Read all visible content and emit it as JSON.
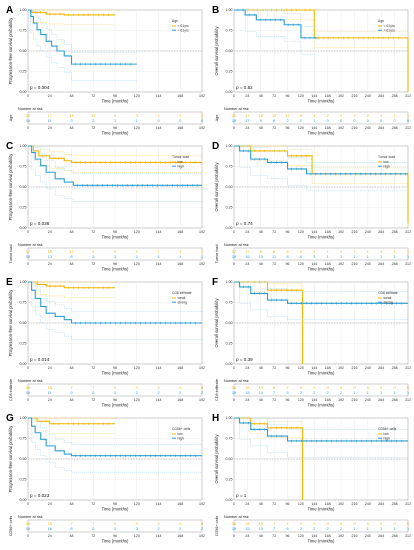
{
  "colors": {
    "low": "#f0b400",
    "high": "#2b9fd2",
    "lowCI": "#f6d36b",
    "highCI": "#9dd3ea",
    "grid": "#dddddd",
    "ref": "#999999"
  },
  "panels": [
    {
      "letter": "A",
      "ylabel": "Progression-free survival probability",
      "xlabel": "Time (months)",
      "xticks": [
        "0",
        "24",
        "48",
        "72",
        "96",
        "120",
        "144",
        "168",
        "192"
      ],
      "yticks": [
        "0.00",
        "0.25",
        "0.50",
        "0.75",
        "1.00"
      ],
      "legend_title": "Age",
      "legend_items": [
        "< 61yrs",
        "> 61yrs"
      ],
      "pvalue": "p = 0.004",
      "risk_title": "Number at risk",
      "risk_label": "Age",
      "risk_rows": [
        [
          "20",
          "17",
          "14",
          "12",
          "4",
          "3",
          "2",
          "2",
          "2"
        ],
        [
          "16",
          "11",
          "3",
          "2",
          "1",
          "1",
          "0",
          "0",
          "0"
        ]
      ]
    },
    {
      "letter": "B",
      "ylabel": "Overall survival probability",
      "xlabel": "Time (months)",
      "xticks": [
        "0",
        "24",
        "48",
        "72",
        "96",
        "120",
        "144",
        "168",
        "192",
        "216",
        "240",
        "264",
        "288",
        "312"
      ],
      "yticks": [
        "0.00",
        "0.25",
        "0.50",
        "0.75",
        "1.00"
      ],
      "legend_title": "Age",
      "legend_items": [
        "< 61yrs",
        "> 61yrs"
      ],
      "pvalue": "p = 0.52",
      "risk_title": "Number at risk",
      "risk_label": "Age",
      "risk_rows": [
        [
          "20",
          "17",
          "16",
          "15",
          "12",
          "5",
          "4",
          "2",
          "2",
          "2",
          "2",
          "1",
          "1",
          "1"
        ],
        [
          "18",
          "17",
          "9",
          "8",
          "2",
          "1",
          "1",
          "0",
          "0",
          "0",
          "0",
          "0",
          "0",
          "0"
        ]
      ]
    },
    {
      "letter": "C",
      "ylabel": "Progression-free survival probability",
      "xlabel": "Time (months)",
      "xticks": [
        "0",
        "24",
        "48",
        "72",
        "96",
        "120",
        "144",
        "168",
        "192"
      ],
      "yticks": [
        "0.00",
        "0.25",
        "0.50",
        "0.75",
        "1.00"
      ],
      "legend_title": "Tumor load",
      "legend_items": [
        "low",
        "high"
      ],
      "pvalue": "p = 0.036",
      "risk_title": "Number at risk",
      "risk_label": "Tumor load",
      "risk_rows": [
        [
          "17",
          "15",
          "12",
          "9",
          "5",
          "1",
          "1",
          "1",
          "1"
        ],
        [
          "18",
          "13",
          "8",
          "5",
          "3",
          "2",
          "1",
          "1",
          "1"
        ]
      ]
    },
    {
      "letter": "D",
      "ylabel": "Overall survival probability",
      "xlabel": "Time (months)",
      "xticks": [
        "0",
        "24",
        "48",
        "72",
        "96",
        "120",
        "144",
        "168",
        "192",
        "216",
        "240",
        "264",
        "288",
        "312"
      ],
      "yticks": [
        "0.00",
        "0.25",
        "0.50",
        "0.75",
        "1.00"
      ],
      "legend_title": "Tumor load",
      "legend_items": [
        "low",
        "high"
      ],
      "pvalue": "p = 0.74",
      "risk_title": "Number at risk",
      "risk_label": "Tumor load",
      "risk_rows": [
        [
          "17",
          "17",
          "9",
          "8",
          "6",
          "2",
          "1",
          "1",
          "1",
          "1",
          "1",
          "1",
          "1",
          "1"
        ],
        [
          "18",
          "16",
          "13",
          "11",
          "8",
          "4",
          "3",
          "1",
          "1",
          "1",
          "1",
          "1",
          "1",
          "1"
        ]
      ]
    },
    {
      "letter": "E",
      "ylabel": "Progression-free survival probability",
      "xlabel": "Time (months)",
      "xticks": [
        "0",
        "24",
        "48",
        "72",
        "96",
        "120",
        "144",
        "168",
        "192"
      ],
      "yticks": [
        "0.00",
        "0.25",
        "0.50",
        "0.75",
        "1.00"
      ],
      "legend_title": "CD8 infiltrate",
      "legend_items": [
        "weak",
        "strong"
      ],
      "pvalue": "p = 0.014",
      "risk_title": "Number at risk",
      "risk_label": "CD8 infiltrate",
      "risk_rows": [
        [
          "16",
          "16",
          "7",
          "7",
          "0",
          "0",
          "0",
          "0",
          "0"
        ],
        [
          "18",
          "11",
          "9",
          "6",
          "4",
          "2",
          "2",
          "2",
          "2"
        ]
      ]
    },
    {
      "letter": "F",
      "ylabel": "Overall survival probability",
      "xlabel": "Time (months)",
      "xticks": [
        "0",
        "24",
        "48",
        "72",
        "96",
        "120",
        "144",
        "168",
        "192",
        "216",
        "240",
        "264",
        "288",
        "312"
      ],
      "yticks": [
        "0.00",
        "0.25",
        "0.50",
        "0.75",
        "1.00"
      ],
      "legend_title": "CD8 infiltrate",
      "legend_items": [
        "weak",
        "strong"
      ],
      "pvalue": "p = 0.39",
      "risk_title": "Number at risk",
      "risk_label": "CD8 infiltrate",
      "risk_rows": [
        [
          "16",
          "16",
          "13",
          "8",
          "7",
          "0",
          "0",
          "0",
          "0",
          "0",
          "0",
          "0",
          "0",
          "0"
        ],
        [
          "18",
          "18",
          "14",
          "7",
          "5",
          "2",
          "2",
          "2",
          "2",
          "1",
          "1",
          "1",
          "1",
          "1"
        ]
      ]
    },
    {
      "letter": "G",
      "ylabel": "Progression-free survival probability",
      "xlabel": "Time (months)",
      "xticks": [
        "0",
        "24",
        "48",
        "72",
        "96",
        "120",
        "144",
        "168",
        "192"
      ],
      "yticks": [
        "0.00",
        "0.25",
        "0.50",
        "0.75",
        "1.00"
      ],
      "legend_title": "CD56+ cells",
      "legend_items": [
        "low",
        "high"
      ],
      "pvalue": "p = 0.023",
      "risk_title": "Number at risk",
      "risk_label": "CD56+ cells",
      "risk_rows": [
        [
          "16",
          "15",
          "7",
          "7",
          "0",
          "0",
          "0",
          "0",
          "0"
        ],
        [
          "18",
          "16",
          "8",
          "6",
          "4",
          "3",
          "2",
          "2",
          "2"
        ]
      ]
    },
    {
      "letter": "H",
      "ylabel": "Overall survival probability",
      "xlabel": "Time (months)",
      "xticks": [
        "0",
        "24",
        "48",
        "72",
        "96",
        "120",
        "144",
        "168",
        "192",
        "216",
        "240",
        "264",
        "288",
        "312"
      ],
      "yticks": [
        "0.00",
        "0.25",
        "0.50",
        "0.75",
        "1.00"
      ],
      "legend_title": "CD56+ cells",
      "legend_items": [
        "low",
        "high"
      ],
      "pvalue": "p = 1",
      "risk_title": "Number at risk",
      "risk_label": "CD56+ cells",
      "risk_rows": [
        [
          "16",
          "15",
          "13",
          "7",
          "4",
          "1",
          "0",
          "0",
          "0",
          "0",
          "0",
          "0",
          "0",
          "0"
        ],
        [
          "18",
          "15",
          "13",
          "7",
          "6",
          "2",
          "2",
          "2",
          "2",
          "1",
          "1",
          "1",
          "1",
          "1"
        ]
      ]
    }
  ],
  "chart_data": [
    {
      "type": "line",
      "panel": "A",
      "xlim": [
        0,
        192
      ],
      "ylim": [
        0,
        1
      ],
      "series": [
        {
          "name": "< 61yrs",
          "x": [
            0,
            4,
            20,
            40,
            96
          ],
          "y": [
            1,
            0.97,
            0.95,
            0.94,
            0.94
          ]
        },
        {
          "name": "> 61yrs",
          "x": [
            0,
            3,
            6,
            10,
            14,
            20,
            26,
            32,
            40,
            48,
            120
          ],
          "y": [
            1,
            0.92,
            0.84,
            0.76,
            0.7,
            0.62,
            0.56,
            0.5,
            0.44,
            0.34,
            0.34
          ]
        }
      ]
    },
    {
      "type": "line",
      "panel": "B",
      "xlim": [
        0,
        312
      ],
      "ylim": [
        0,
        1
      ],
      "series": [
        {
          "name": "< 61yrs",
          "x": [
            0,
            60,
            120,
            144,
            306,
            312
          ],
          "y": [
            1,
            1,
            1,
            0.66,
            0.66,
            0
          ]
        },
        {
          "name": "> 61yrs",
          "x": [
            0,
            20,
            40,
            90,
            120,
            150
          ],
          "y": [
            1,
            0.94,
            0.88,
            0.82,
            0.66,
            0.66
          ]
        }
      ]
    },
    {
      "type": "line",
      "panel": "C",
      "xlim": [
        0,
        192
      ],
      "ylim": [
        0,
        1
      ],
      "series": [
        {
          "name": "low",
          "x": [
            0,
            6,
            12,
            24,
            40,
            48,
            192
          ],
          "y": [
            1,
            0.94,
            0.88,
            0.85,
            0.82,
            0.8,
            0.8
          ]
        },
        {
          "name": "high",
          "x": [
            0,
            4,
            8,
            14,
            20,
            30,
            40,
            50,
            192
          ],
          "y": [
            1,
            0.92,
            0.84,
            0.76,
            0.68,
            0.6,
            0.56,
            0.52,
            0.52
          ]
        }
      ]
    },
    {
      "type": "line",
      "panel": "D",
      "xlim": [
        0,
        312
      ],
      "ylim": [
        0,
        1
      ],
      "series": [
        {
          "name": "low",
          "x": [
            0,
            30,
            96,
            140,
            306,
            312
          ],
          "y": [
            1,
            0.94,
            0.88,
            0.66,
            0.66,
            0.06
          ]
        },
        {
          "name": "high",
          "x": [
            0,
            10,
            30,
            60,
            96,
            130,
            312
          ],
          "y": [
            1,
            0.94,
            0.84,
            0.8,
            0.72,
            0.66,
            0.66
          ]
        }
      ]
    },
    {
      "type": "line",
      "panel": "E",
      "xlim": [
        0,
        192
      ],
      "ylim": [
        0,
        1
      ],
      "series": [
        {
          "name": "weak",
          "x": [
            0,
            10,
            20,
            40,
            96
          ],
          "y": [
            1,
            0.97,
            0.95,
            0.93,
            0.93
          ]
        },
        {
          "name": "strong",
          "x": [
            0,
            4,
            8,
            14,
            20,
            30,
            40,
            48,
            192
          ],
          "y": [
            1,
            0.9,
            0.8,
            0.7,
            0.62,
            0.58,
            0.54,
            0.5,
            0.5
          ]
        }
      ]
    },
    {
      "type": "line",
      "panel": "F",
      "xlim": [
        0,
        312
      ],
      "ylim": [
        0,
        1
      ],
      "series": [
        {
          "name": "weak",
          "x": [
            0,
            30,
            60,
            120,
            123
          ],
          "y": [
            1,
            1,
            0.9,
            0.9,
            0
          ]
        },
        {
          "name": "strong",
          "x": [
            0,
            10,
            30,
            60,
            96,
            312
          ],
          "y": [
            1,
            0.94,
            0.86,
            0.78,
            0.74,
            0.74
          ]
        }
      ]
    },
    {
      "type": "line",
      "panel": "G",
      "xlim": [
        0,
        192
      ],
      "ylim": [
        0,
        1
      ],
      "series": [
        {
          "name": "low",
          "x": [
            0,
            10,
            24,
            40,
            96
          ],
          "y": [
            1,
            0.96,
            0.93,
            0.93,
            0.93
          ]
        },
        {
          "name": "high",
          "x": [
            0,
            4,
            8,
            14,
            20,
            30,
            40,
            48,
            192
          ],
          "y": [
            1,
            0.9,
            0.82,
            0.74,
            0.66,
            0.6,
            0.56,
            0.54,
            0.54
          ]
        }
      ]
    },
    {
      "type": "line",
      "panel": "H",
      "xlim": [
        0,
        312
      ],
      "ylim": [
        0,
        1
      ],
      "series": [
        {
          "name": "low",
          "x": [
            0,
            30,
            60,
            120,
            123
          ],
          "y": [
            1,
            0.93,
            0.88,
            0.88,
            0
          ]
        },
        {
          "name": "high",
          "x": [
            0,
            10,
            30,
            60,
            96,
            312
          ],
          "y": [
            1,
            0.94,
            0.86,
            0.78,
            0.72,
            0.72
          ]
        }
      ]
    }
  ]
}
